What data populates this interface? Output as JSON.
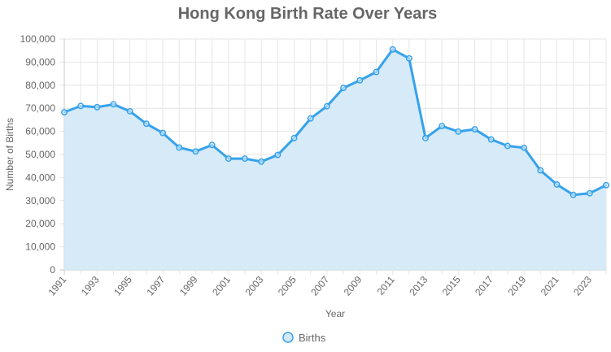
{
  "chart_data": {
    "type": "area",
    "title": "Hong Kong Birth Rate Over Years",
    "xlabel": "Year",
    "ylabel": "Number of Births",
    "ylim": [
      0,
      100000
    ],
    "y_ticks": [
      "0",
      "10,000",
      "20,000",
      "30,000",
      "40,000",
      "50,000",
      "60,000",
      "70,000",
      "80,000",
      "90,000",
      "100,000"
    ],
    "x_tick_labels": [
      "1991",
      "1993",
      "1995",
      "1997",
      "1999",
      "2001",
      "2003",
      "2005",
      "2007",
      "2009",
      "2011",
      "2013",
      "2015",
      "2017",
      "2019",
      "2021",
      "2023"
    ],
    "grid": true,
    "legend_position": "bottom",
    "x": [
      1991,
      1992,
      1993,
      1994,
      1995,
      1996,
      1997,
      1998,
      1999,
      2000,
      2001,
      2002,
      2003,
      2004,
      2005,
      2006,
      2007,
      2008,
      2009,
      2010,
      2011,
      2012,
      2013,
      2014,
      2015,
      2016,
      2017,
      2018,
      2019,
      2020,
      2021,
      2022,
      2023,
      2024
    ],
    "series": [
      {
        "name": "Births",
        "color": "#36a2eb",
        "fill": "#d4e9f8",
        "values": [
          68300,
          71000,
          70500,
          71700,
          68700,
          63300,
          59300,
          53000,
          51300,
          54100,
          48200,
          48200,
          46900,
          49800,
          57100,
          65600,
          70900,
          78800,
          82100,
          85700,
          95500,
          91600,
          57100,
          62300,
          59900,
          60900,
          56500,
          53700,
          52900,
          43100,
          37000,
          32500,
          33200,
          36700
        ]
      }
    ]
  }
}
